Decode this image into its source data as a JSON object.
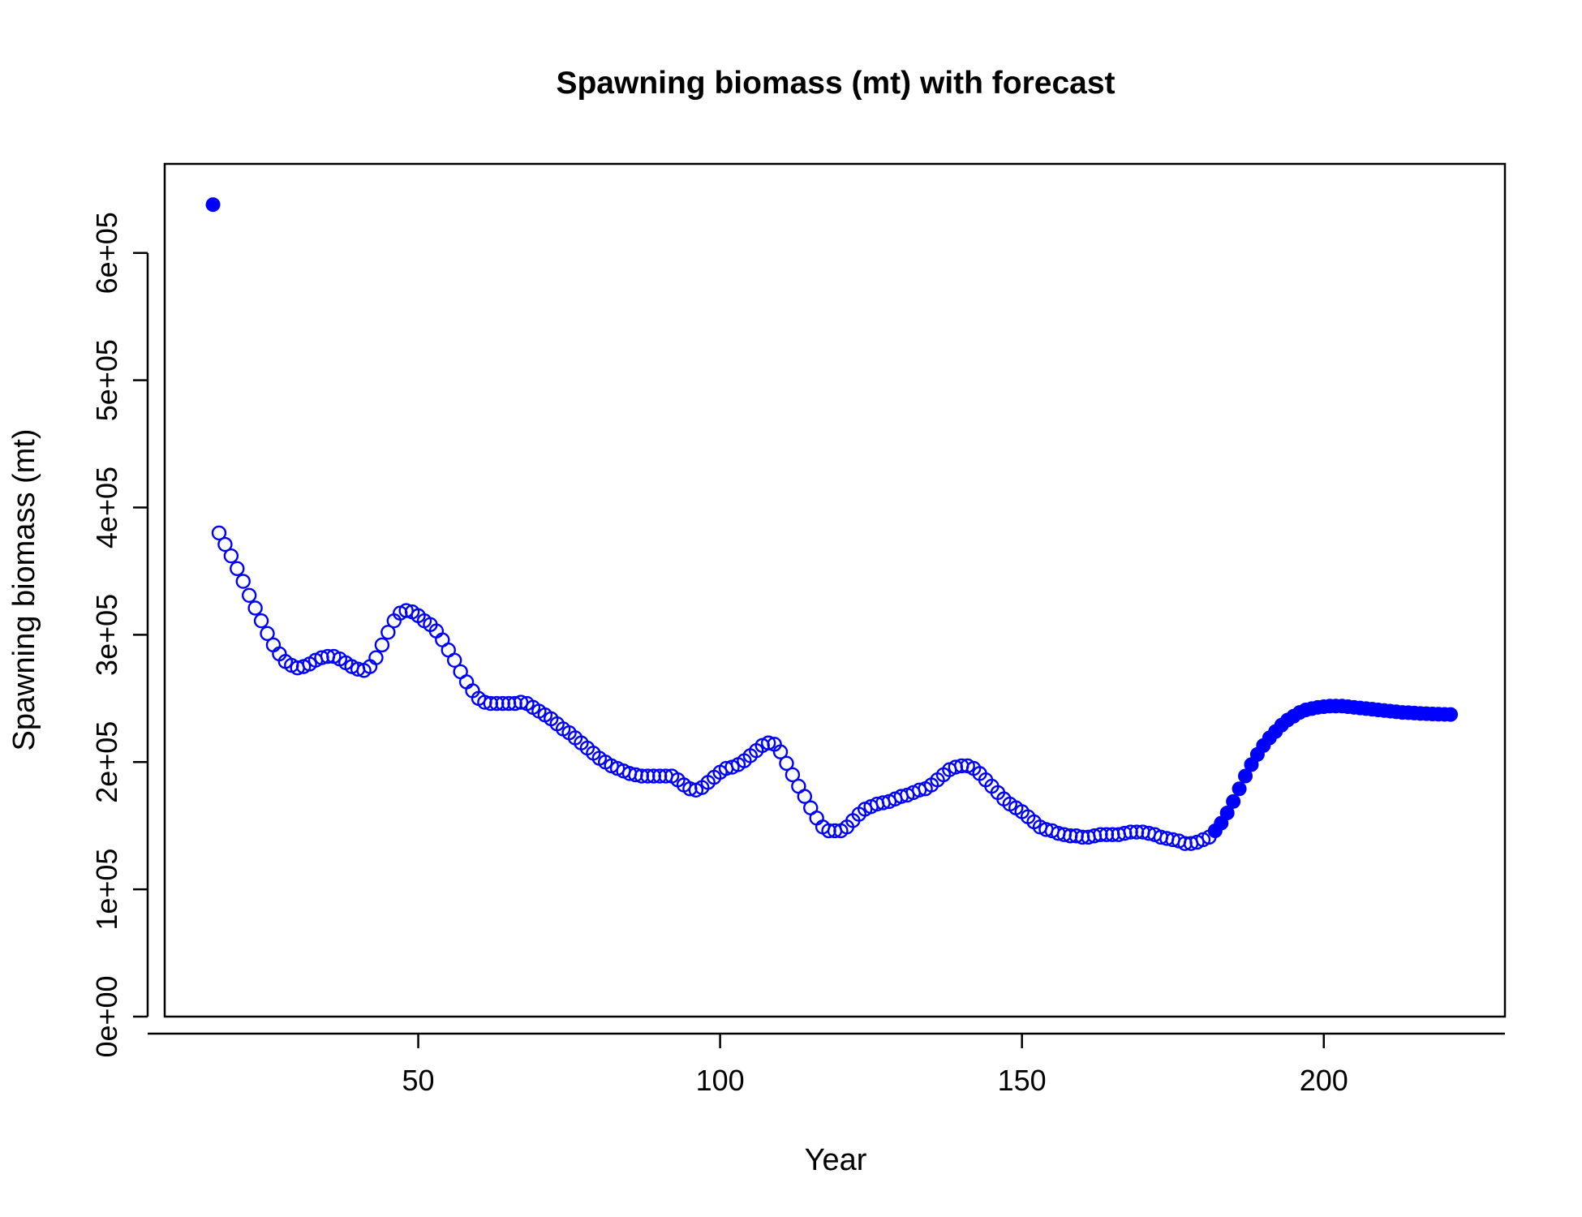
{
  "chart_data": {
    "type": "scatter",
    "title": "Spawning biomass (mt) with forecast",
    "xlabel": "Year",
    "ylabel": "Spawning biomass (mt)",
    "xlim": [
      8,
      230
    ],
    "ylim": [
      0,
      670000
    ],
    "x_ticks": [
      50,
      100,
      150,
      200
    ],
    "x_tick_labels": [
      "50",
      "100",
      "150",
      "200"
    ],
    "y_ticks": [
      0,
      100000,
      200000,
      300000,
      400000,
      500000,
      600000
    ],
    "y_tick_labels": [
      "0e+00",
      "1e+05",
      "2e+05",
      "3e+05",
      "4e+05",
      "5e+05",
      "6e+05"
    ],
    "marker_color": "#0000FF",
    "series": [
      {
        "marker": "filled",
        "points": [
          [
            16,
            638000
          ]
        ]
      },
      {
        "marker": "open",
        "points": [
          [
            17,
            380000
          ],
          [
            18,
            371000
          ],
          [
            19,
            362000
          ],
          [
            20,
            352000
          ],
          [
            21,
            342000
          ],
          [
            22,
            331000
          ],
          [
            23,
            321000
          ],
          [
            24,
            311000
          ],
          [
            25,
            301000
          ],
          [
            26,
            292000
          ],
          [
            27,
            285000
          ],
          [
            28,
            279000
          ],
          [
            29,
            276000
          ],
          [
            30,
            274000
          ],
          [
            31,
            275000
          ],
          [
            32,
            277000
          ],
          [
            33,
            280000
          ],
          [
            34,
            282000
          ],
          [
            35,
            283000
          ],
          [
            36,
            283000
          ],
          [
            37,
            281000
          ],
          [
            38,
            278000
          ],
          [
            39,
            275000
          ],
          [
            40,
            273000
          ],
          [
            41,
            272000
          ],
          [
            42,
            275000
          ],
          [
            43,
            282000
          ],
          [
            44,
            292000
          ],
          [
            45,
            302000
          ],
          [
            46,
            311000
          ],
          [
            47,
            317000
          ],
          [
            48,
            319000
          ],
          [
            49,
            318000
          ],
          [
            50,
            315000
          ],
          [
            51,
            311000
          ],
          [
            52,
            308000
          ],
          [
            53,
            303000
          ],
          [
            54,
            296000
          ],
          [
            55,
            288000
          ],
          [
            56,
            280000
          ],
          [
            57,
            271000
          ],
          [
            58,
            263000
          ],
          [
            59,
            256000
          ],
          [
            60,
            250000
          ],
          [
            61,
            247000
          ],
          [
            62,
            246000
          ],
          [
            63,
            246000
          ],
          [
            64,
            246000
          ],
          [
            65,
            246000
          ],
          [
            66,
            246000
          ],
          [
            67,
            247000
          ],
          [
            68,
            246000
          ],
          [
            69,
            243000
          ],
          [
            70,
            240000
          ],
          [
            71,
            237000
          ],
          [
            72,
            234000
          ],
          [
            73,
            230000
          ],
          [
            74,
            226000
          ],
          [
            75,
            223000
          ],
          [
            76,
            219000
          ],
          [
            77,
            215000
          ],
          [
            78,
            211000
          ],
          [
            79,
            207000
          ],
          [
            80,
            203000
          ],
          [
            81,
            200000
          ],
          [
            82,
            197000
          ],
          [
            83,
            195000
          ],
          [
            84,
            193000
          ],
          [
            85,
            191000
          ],
          [
            86,
            190000
          ],
          [
            87,
            189000
          ],
          [
            88,
            189000
          ],
          [
            89,
            189000
          ],
          [
            90,
            189000
          ],
          [
            91,
            189000
          ],
          [
            92,
            189000
          ],
          [
            93,
            186000
          ],
          [
            94,
            182000
          ],
          [
            95,
            179000
          ],
          [
            96,
            178000
          ],
          [
            97,
            180000
          ],
          [
            98,
            184000
          ],
          [
            99,
            188000
          ],
          [
            100,
            192000
          ],
          [
            101,
            195000
          ],
          [
            102,
            196000
          ],
          [
            103,
            198000
          ],
          [
            104,
            201000
          ],
          [
            105,
            205000
          ],
          [
            106,
            209000
          ],
          [
            107,
            213000
          ],
          [
            108,
            215000
          ],
          [
            109,
            214000
          ],
          [
            110,
            208000
          ],
          [
            111,
            199000
          ],
          [
            112,
            190000
          ],
          [
            113,
            181000
          ],
          [
            114,
            173000
          ],
          [
            115,
            164000
          ],
          [
            116,
            156000
          ],
          [
            117,
            149000
          ],
          [
            118,
            146000
          ],
          [
            119,
            146000
          ],
          [
            120,
            146000
          ],
          [
            121,
            149000
          ],
          [
            122,
            154000
          ],
          [
            123,
            159000
          ],
          [
            124,
            163000
          ],
          [
            125,
            165000
          ],
          [
            126,
            167000
          ],
          [
            127,
            168000
          ],
          [
            128,
            169000
          ],
          [
            129,
            171000
          ],
          [
            130,
            173000
          ],
          [
            131,
            174000
          ],
          [
            132,
            176000
          ],
          [
            133,
            178000
          ],
          [
            134,
            179000
          ],
          [
            135,
            182000
          ],
          [
            136,
            186000
          ],
          [
            137,
            190000
          ],
          [
            138,
            194000
          ],
          [
            139,
            196000
          ],
          [
            140,
            197000
          ],
          [
            141,
            197000
          ],
          [
            142,
            195000
          ],
          [
            143,
            191000
          ],
          [
            144,
            186000
          ],
          [
            145,
            181000
          ],
          [
            146,
            176000
          ],
          [
            147,
            171000
          ],
          [
            148,
            167000
          ],
          [
            149,
            164000
          ],
          [
            150,
            161000
          ],
          [
            151,
            157000
          ],
          [
            152,
            153000
          ],
          [
            153,
            149000
          ],
          [
            154,
            147000
          ],
          [
            155,
            146000
          ],
          [
            156,
            144000
          ],
          [
            157,
            143000
          ],
          [
            158,
            142000
          ],
          [
            159,
            142000
          ],
          [
            160,
            141000
          ],
          [
            161,
            141000
          ],
          [
            162,
            142000
          ],
          [
            163,
            143000
          ],
          [
            164,
            143000
          ],
          [
            165,
            143000
          ],
          [
            166,
            143000
          ],
          [
            167,
            144000
          ],
          [
            168,
            145000
          ],
          [
            169,
            145000
          ],
          [
            170,
            145000
          ],
          [
            171,
            144000
          ],
          [
            172,
            143000
          ],
          [
            173,
            141000
          ],
          [
            174,
            140000
          ],
          [
            175,
            139000
          ],
          [
            176,
            138000
          ],
          [
            177,
            136000
          ],
          [
            178,
            136000
          ],
          [
            179,
            137000
          ],
          [
            180,
            139000
          ],
          [
            181,
            141000
          ]
        ]
      },
      {
        "marker": "filled",
        "points": [
          [
            182,
            146000
          ],
          [
            183,
            152000
          ],
          [
            184,
            160000
          ],
          [
            185,
            169000
          ],
          [
            186,
            179000
          ],
          [
            187,
            189000
          ],
          [
            188,
            198000
          ],
          [
            189,
            206000
          ],
          [
            190,
            213000
          ],
          [
            191,
            219000
          ],
          [
            192,
            224000
          ],
          [
            193,
            229000
          ],
          [
            194,
            233000
          ],
          [
            195,
            236000
          ],
          [
            196,
            239000
          ],
          [
            197,
            241000
          ],
          [
            198,
            242000
          ],
          [
            199,
            243000
          ],
          [
            200,
            243500
          ],
          [
            201,
            244000
          ],
          [
            202,
            244000
          ],
          [
            203,
            244000
          ],
          [
            204,
            243500
          ],
          [
            205,
            243000
          ],
          [
            206,
            242500
          ],
          [
            207,
            242000
          ],
          [
            208,
            241500
          ],
          [
            209,
            241000
          ],
          [
            210,
            240500
          ],
          [
            211,
            240000
          ],
          [
            212,
            239500
          ],
          [
            213,
            239000
          ],
          [
            214,
            238800
          ],
          [
            215,
            238500
          ],
          [
            216,
            238200
          ],
          [
            217,
            238000
          ],
          [
            218,
            237800
          ],
          [
            219,
            237600
          ],
          [
            220,
            237500
          ],
          [
            221,
            237400
          ]
        ]
      }
    ]
  }
}
